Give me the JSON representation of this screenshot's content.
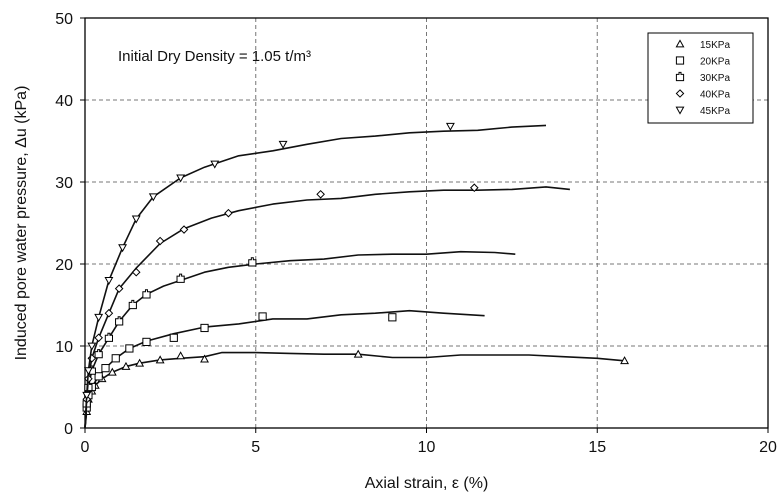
{
  "chart_data": {
    "type": "scatter",
    "title": "",
    "annotation": "Initial Dry Density = 1.05 t/m³",
    "xlabel": "Axial strain, ε (%)",
    "ylabel": "Induced pore water pressure, Δu (kPa)",
    "xlim": [
      0,
      20
    ],
    "ylim": [
      0,
      50
    ],
    "xticks": [
      0,
      5,
      10,
      15,
      20
    ],
    "yticks": [
      0,
      10,
      20,
      30,
      40,
      50
    ],
    "xtick_labels": [
      "0",
      "5",
      "10",
      "15",
      "20"
    ],
    "ytick_labels": [
      "0",
      "10",
      "20",
      "30",
      "40",
      "50"
    ],
    "grid": "dashed",
    "legend_position": "top-right",
    "series": [
      {
        "name": "15KPa",
        "marker": "triangle-up",
        "points": [
          [
            0.05,
            2
          ],
          [
            0.1,
            3.5
          ],
          [
            0.2,
            4.5
          ],
          [
            0.3,
            5.2
          ],
          [
            0.5,
            6
          ],
          [
            0.8,
            6.8
          ],
          [
            1.2,
            7.5
          ],
          [
            1.6,
            7.9
          ],
          [
            2.2,
            8.3
          ],
          [
            2.8,
            8.8
          ],
          [
            3.5,
            8.4
          ],
          [
            8,
            9
          ],
          [
            15.8,
            8.2
          ]
        ],
        "line": [
          [
            0,
            0
          ],
          [
            0.05,
            2
          ],
          [
            0.1,
            3.5
          ],
          [
            0.2,
            4.5
          ],
          [
            0.3,
            5.2
          ],
          [
            0.5,
            6
          ],
          [
            0.8,
            6.8
          ],
          [
            1.2,
            7.5
          ],
          [
            1.6,
            7.9
          ],
          [
            2.2,
            8.3
          ],
          [
            2.8,
            8.5
          ],
          [
            3.5,
            8.7
          ],
          [
            4,
            9.2
          ],
          [
            5,
            9.2
          ],
          [
            6,
            9.1
          ],
          [
            7,
            9
          ],
          [
            8,
            9
          ],
          [
            9,
            8.6
          ],
          [
            10,
            8.6
          ],
          [
            11,
            8.9
          ],
          [
            12,
            8.9
          ],
          [
            13,
            8.9
          ],
          [
            14,
            8.7
          ],
          [
            15,
            8.5
          ],
          [
            15.8,
            8.2
          ]
        ]
      },
      {
        "name": "20KPa",
        "marker": "square",
        "points": [
          [
            0.05,
            2.5
          ],
          [
            0.1,
            4
          ],
          [
            0.2,
            5
          ],
          [
            0.4,
            6.3
          ],
          [
            0.6,
            7.3
          ],
          [
            0.9,
            8.5
          ],
          [
            1.3,
            9.7
          ],
          [
            1.8,
            10.5
          ],
          [
            2.6,
            11
          ],
          [
            3.5,
            12.2
          ],
          [
            5.2,
            13.6
          ],
          [
            9,
            13.5
          ]
        ],
        "line": [
          [
            0,
            0
          ],
          [
            0.05,
            2.5
          ],
          [
            0.1,
            4
          ],
          [
            0.2,
            5
          ],
          [
            0.4,
            6.3
          ],
          [
            0.6,
            7.3
          ],
          [
            0.9,
            8.5
          ],
          [
            1.3,
            9.7
          ],
          [
            1.8,
            10.6
          ],
          [
            2.6,
            11.5
          ],
          [
            3.5,
            12.3
          ],
          [
            4.5,
            12.7
          ],
          [
            5.5,
            13.3
          ],
          [
            6.5,
            13.3
          ],
          [
            7.5,
            13.8
          ],
          [
            8.5,
            14
          ],
          [
            9.5,
            14.3
          ],
          [
            10.5,
            14
          ],
          [
            11.7,
            13.7
          ]
        ]
      },
      {
        "name": "30KPa",
        "marker": "square-notched",
        "points": [
          [
            0.05,
            3
          ],
          [
            0.1,
            5
          ],
          [
            0.2,
            7
          ],
          [
            0.4,
            9
          ],
          [
            0.7,
            11
          ],
          [
            1.0,
            13
          ],
          [
            1.4,
            15
          ],
          [
            1.8,
            16.3
          ],
          [
            2.8,
            18.2
          ],
          [
            4.9,
            20.2
          ]
        ],
        "line": [
          [
            0,
            0
          ],
          [
            0.05,
            3
          ],
          [
            0.1,
            5
          ],
          [
            0.2,
            7
          ],
          [
            0.4,
            9
          ],
          [
            0.7,
            11
          ],
          [
            1.0,
            13
          ],
          [
            1.4,
            15
          ],
          [
            1.8,
            16.3
          ],
          [
            2.3,
            17.3
          ],
          [
            2.8,
            18
          ],
          [
            3.5,
            19
          ],
          [
            4.2,
            19.6
          ],
          [
            5,
            20
          ],
          [
            6,
            20.4
          ],
          [
            7,
            20.6
          ],
          [
            8,
            21.1
          ],
          [
            9,
            21.2
          ],
          [
            10,
            21.2
          ],
          [
            11,
            21.5
          ],
          [
            12,
            21.4
          ],
          [
            12.6,
            21.2
          ]
        ]
      },
      {
        "name": "40KPa",
        "marker": "diamond",
        "points": [
          [
            0.05,
            3.5
          ],
          [
            0.1,
            6
          ],
          [
            0.2,
            8.5
          ],
          [
            0.4,
            11
          ],
          [
            0.7,
            14
          ],
          [
            1.0,
            17
          ],
          [
            1.5,
            19
          ],
          [
            2.2,
            22.8
          ],
          [
            2.9,
            24.2
          ],
          [
            4.2,
            26.2
          ],
          [
            6.9,
            28.5
          ],
          [
            11.4,
            29.3
          ]
        ],
        "line": [
          [
            0,
            0
          ],
          [
            0.05,
            3.5
          ],
          [
            0.1,
            6
          ],
          [
            0.2,
            8.5
          ],
          [
            0.4,
            11
          ],
          [
            0.7,
            14
          ],
          [
            1.0,
            17
          ],
          [
            1.5,
            19.5
          ],
          [
            2.2,
            22.5
          ],
          [
            2.9,
            24.3
          ],
          [
            3.7,
            25.6
          ],
          [
            4.5,
            26.5
          ],
          [
            5.5,
            27.3
          ],
          [
            6.5,
            27.8
          ],
          [
            7.5,
            28
          ],
          [
            8.5,
            28.5
          ],
          [
            9.5,
            28.8
          ],
          [
            10.5,
            29
          ],
          [
            11.5,
            29
          ],
          [
            12.5,
            29.1
          ],
          [
            13.5,
            29.4
          ],
          [
            14.2,
            29.1
          ]
        ]
      },
      {
        "name": "45KPa",
        "marker": "triangle-down",
        "points": [
          [
            0.05,
            4
          ],
          [
            0.1,
            7
          ],
          [
            0.2,
            10
          ],
          [
            0.4,
            13.5
          ],
          [
            0.7,
            18
          ],
          [
            1.1,
            22
          ],
          [
            1.5,
            25.5
          ],
          [
            2.0,
            28.2
          ],
          [
            2.8,
            30.5
          ],
          [
            3.8,
            32.2
          ],
          [
            5.8,
            34.6
          ],
          [
            10.7,
            36.8
          ]
        ],
        "line": [
          [
            0,
            0
          ],
          [
            0.05,
            4
          ],
          [
            0.1,
            7
          ],
          [
            0.2,
            10
          ],
          [
            0.4,
            13.5
          ],
          [
            0.7,
            18
          ],
          [
            1.1,
            22
          ],
          [
            1.5,
            25.5
          ],
          [
            2.0,
            28.2
          ],
          [
            2.8,
            30.5
          ],
          [
            3.5,
            31.8
          ],
          [
            4.5,
            33.2
          ],
          [
            5.5,
            33.8
          ],
          [
            6.5,
            34.6
          ],
          [
            7.5,
            35.3
          ],
          [
            8.5,
            35.6
          ],
          [
            9.5,
            36
          ],
          [
            10.5,
            36.2
          ],
          [
            11.5,
            36.3
          ],
          [
            12.5,
            36.7
          ],
          [
            13.5,
            36.9
          ]
        ]
      }
    ]
  }
}
